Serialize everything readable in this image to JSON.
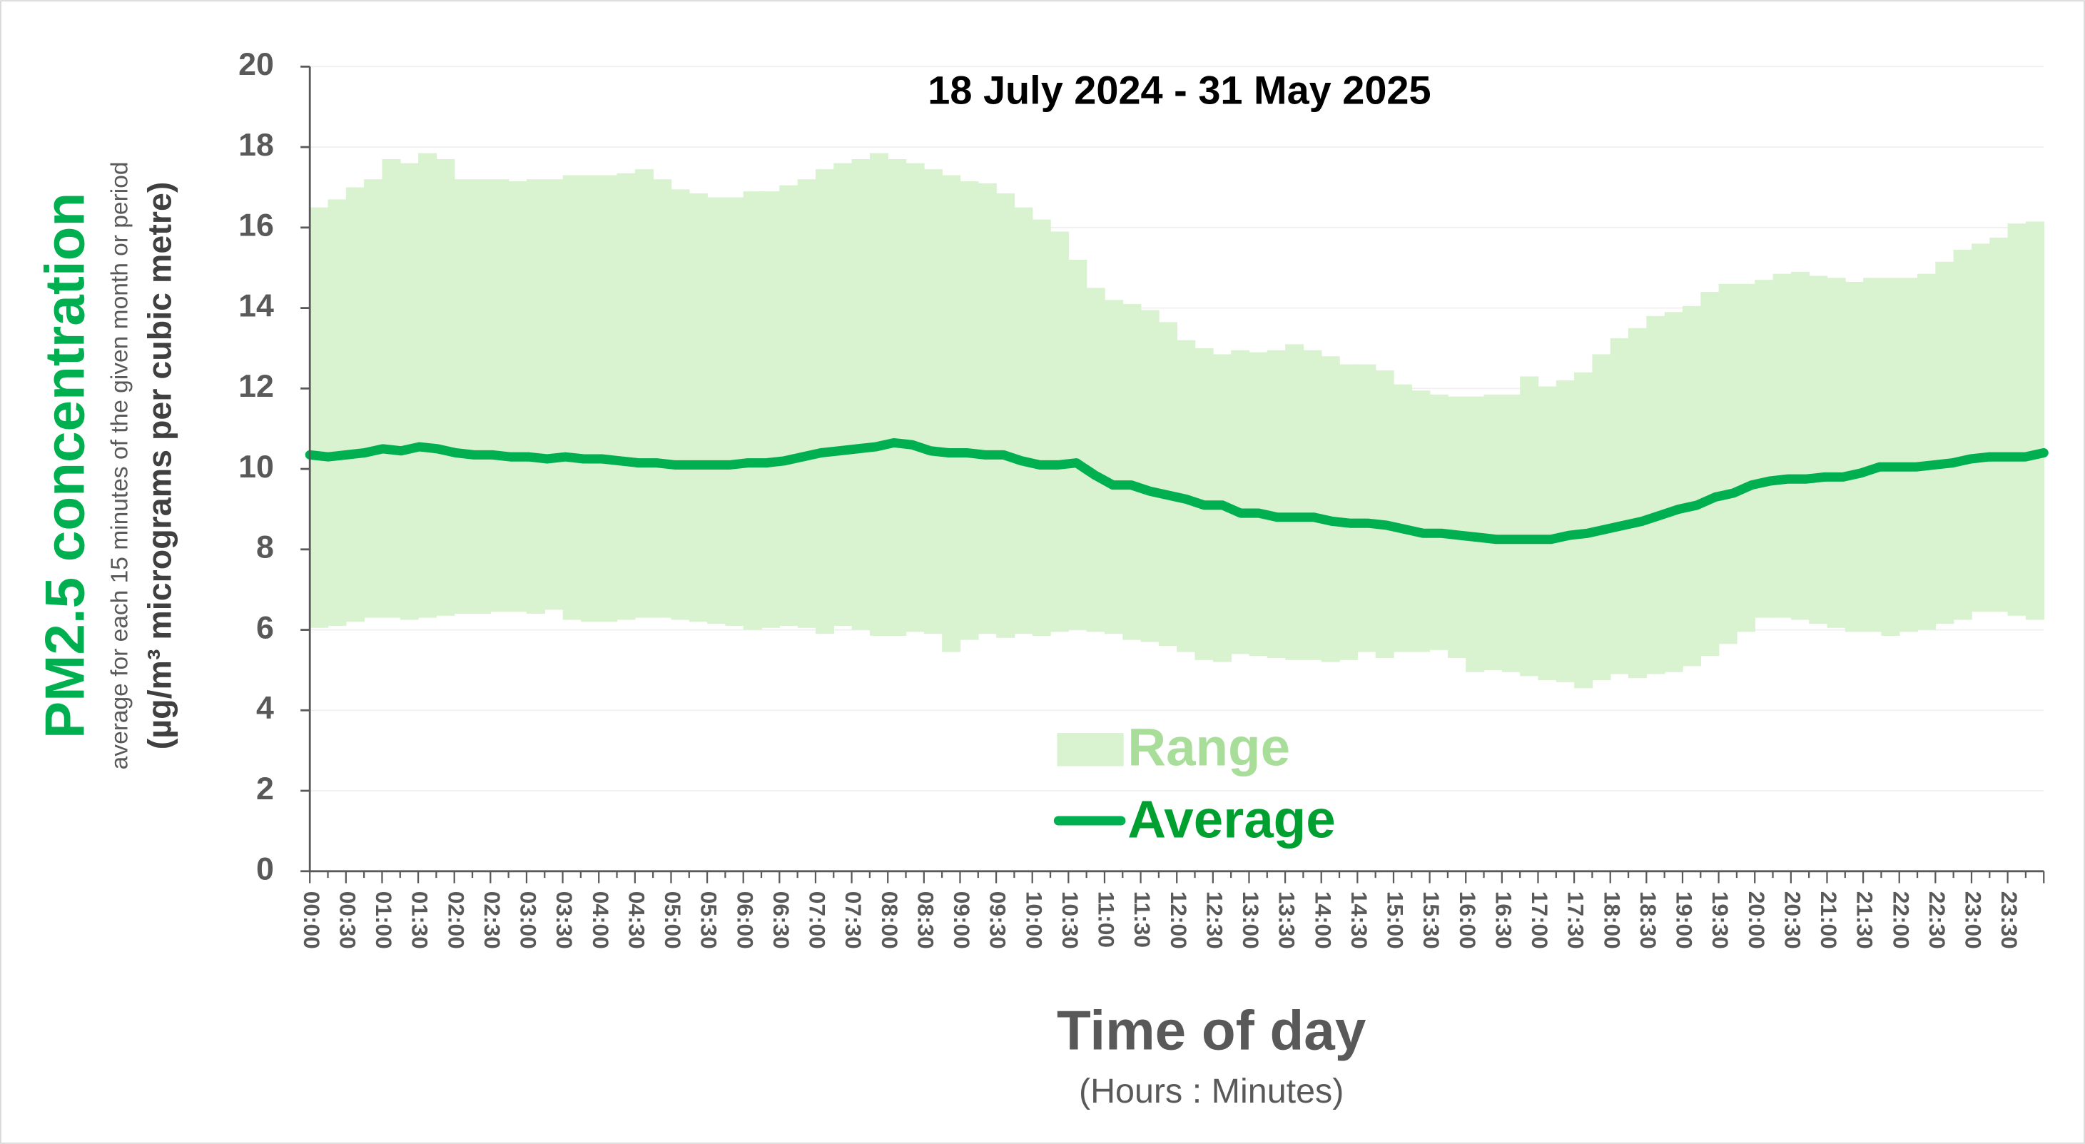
{
  "chart_data": {
    "type": "range_line",
    "title": "18 July 2024 - 31 May 2025",
    "y_title": "PM2.5 concentration",
    "y_subtitle": "average for each 15 minutes of the given month or period",
    "y_unit": "(µg/m³ micrograms per cubic metre)",
    "x_title": "Time of day",
    "x_subtitle": "(Hours : Minutes)",
    "categories": [
      "00:00",
      null,
      "00:30",
      null,
      "01:00",
      null,
      "01:30",
      null,
      "02:00",
      null,
      "02:30",
      null,
      "03:00",
      null,
      "03:30",
      null,
      "04:00",
      null,
      "04:30",
      null,
      "05:00",
      null,
      "05:30",
      null,
      "06:00",
      null,
      "06:30",
      null,
      "07:00",
      null,
      "07:30",
      null,
      "08:00",
      null,
      "08:30",
      null,
      "09:00",
      null,
      "09:30",
      null,
      "10:00",
      null,
      "10:30",
      null,
      "11:00",
      null,
      "11:30",
      null,
      "12:00",
      null,
      "12:30",
      null,
      "13:00",
      null,
      "13:30",
      null,
      "14:00",
      null,
      "14:30",
      null,
      "15:00",
      null,
      "15:30",
      null,
      "16:00",
      null,
      "16:30",
      null,
      "17:00",
      null,
      "17:30",
      null,
      "18:00",
      null,
      "18:30",
      null,
      "19:00",
      null,
      "19:30",
      null,
      "20:00",
      null,
      "20:30",
      null,
      "21:00",
      null,
      "21:30",
      null,
      "22:00",
      null,
      "22:30",
      null,
      "23:00",
      null,
      "23:30",
      null
    ],
    "series": [
      {
        "name": "Range",
        "color": "#d9f2d0",
        "low": [
          6.05,
          6.1,
          6.2,
          6.3,
          6.3,
          6.25,
          6.3,
          6.35,
          6.4,
          6.4,
          6.45,
          6.45,
          6.4,
          6.5,
          6.25,
          6.2,
          6.2,
          6.25,
          6.3,
          6.3,
          6.25,
          6.2,
          6.15,
          6.1,
          6.0,
          6.05,
          6.1,
          6.05,
          5.9,
          6.1,
          6.0,
          5.85,
          5.85,
          5.95,
          5.9,
          5.45,
          5.75,
          5.9,
          5.8,
          5.9,
          5.85,
          5.95,
          6.0,
          5.95,
          5.9,
          5.75,
          5.7,
          5.6,
          5.45,
          5.25,
          5.2,
          5.4,
          5.35,
          5.3,
          5.25,
          5.25,
          5.2,
          5.25,
          5.45,
          5.3,
          5.45,
          5.45,
          5.5,
          5.3,
          4.95,
          5.0,
          4.95,
          4.85,
          4.75,
          4.7,
          4.55,
          4.75,
          4.9,
          4.8,
          4.9,
          4.95,
          5.1,
          5.35,
          5.65,
          5.95,
          6.3,
          6.3,
          6.25,
          6.15,
          6.05,
          5.95,
          5.95,
          5.85,
          5.95,
          6.0,
          6.15,
          6.25,
          6.45,
          6.45,
          6.35,
          6.25
        ],
        "high": [
          16.5,
          16.7,
          17.0,
          17.2,
          17.7,
          17.6,
          17.85,
          17.7,
          17.2,
          17.2,
          17.2,
          17.15,
          17.2,
          17.2,
          17.3,
          17.3,
          17.3,
          17.35,
          17.45,
          17.2,
          16.95,
          16.85,
          16.75,
          16.75,
          16.9,
          16.9,
          17.05,
          17.2,
          17.45,
          17.6,
          17.7,
          17.85,
          17.7,
          17.6,
          17.45,
          17.3,
          17.15,
          17.1,
          16.85,
          16.5,
          16.2,
          15.9,
          15.2,
          14.5,
          14.2,
          14.1,
          13.95,
          13.65,
          13.2,
          13.0,
          12.85,
          12.95,
          12.9,
          12.95,
          13.1,
          12.95,
          12.8,
          12.6,
          12.6,
          12.45,
          12.1,
          11.95,
          11.85,
          11.8,
          11.8,
          11.85,
          11.85,
          12.3,
          12.05,
          12.2,
          12.4,
          12.85,
          13.25,
          13.5,
          13.8,
          13.9,
          14.05,
          14.4,
          14.6,
          14.6,
          14.7,
          14.85,
          14.9,
          14.8,
          14.75,
          14.65,
          14.75,
          14.75,
          14.75,
          14.85,
          15.15,
          15.45,
          15.6,
          15.75,
          16.1,
          16.15
        ]
      },
      {
        "name": "Average",
        "color": "#00b050",
        "values": [
          10.35,
          10.3,
          10.35,
          10.4,
          10.5,
          10.45,
          10.55,
          10.5,
          10.4,
          10.35,
          10.35,
          10.3,
          10.3,
          10.25,
          10.3,
          10.25,
          10.25,
          10.2,
          10.15,
          10.15,
          10.1,
          10.1,
          10.1,
          10.1,
          10.15,
          10.15,
          10.2,
          10.3,
          10.4,
          10.45,
          10.5,
          10.55,
          10.65,
          10.6,
          10.45,
          10.4,
          10.4,
          10.35,
          10.35,
          10.2,
          10.1,
          10.1,
          10.15,
          9.85,
          9.6,
          9.6,
          9.45,
          9.35,
          9.25,
          9.1,
          9.1,
          8.9,
          8.9,
          8.8,
          8.8,
          8.8,
          8.7,
          8.65,
          8.65,
          8.6,
          8.5,
          8.4,
          8.4,
          8.35,
          8.3,
          8.25,
          8.25,
          8.25,
          8.25,
          8.35,
          8.4,
          8.5,
          8.6,
          8.7,
          8.85,
          9.0,
          9.1,
          9.3,
          9.4,
          9.6,
          9.7,
          9.75,
          9.75,
          9.8,
          9.8,
          9.9,
          10.05,
          10.05,
          10.05,
          10.1,
          10.15,
          10.25,
          10.3,
          10.3,
          10.3,
          10.4
        ]
      }
    ],
    "ylim": [
      0,
      20
    ],
    "yticks": [
      0,
      2,
      4,
      6,
      8,
      10,
      12,
      14,
      16,
      18,
      20
    ],
    "grid": true
  }
}
